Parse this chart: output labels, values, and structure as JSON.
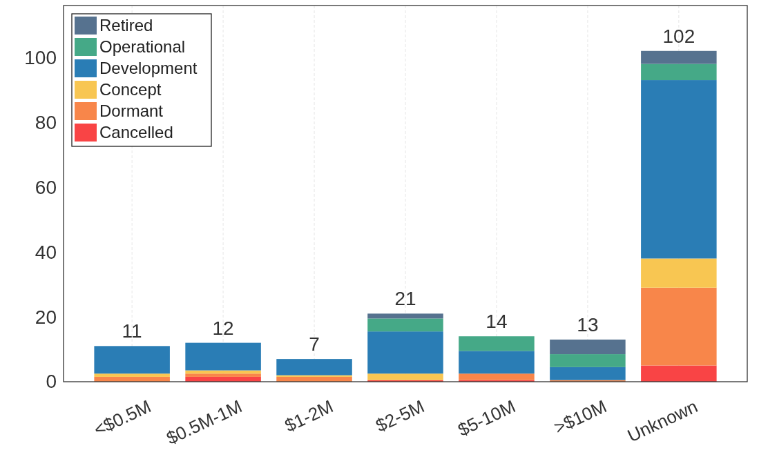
{
  "chart_data": {
    "type": "bar",
    "stacked": true,
    "categories": [
      "<$0.5M",
      "$0.5M-1M",
      "$1-2M",
      "$2-5M",
      "$5-10M",
      ">$10M",
      "Unknown"
    ],
    "series": [
      {
        "name": "Cancelled",
        "color": "#f94445",
        "values": [
          0,
          1.5,
          0,
          0.5,
          0.5,
          0,
          5
        ]
      },
      {
        "name": "Dormant",
        "color": "#f8864a",
        "values": [
          1.5,
          1,
          1.5,
          0,
          2,
          0.5,
          24
        ]
      },
      {
        "name": "Concept",
        "color": "#f8c652",
        "values": [
          1,
          1,
          0.5,
          2,
          0,
          0,
          9
        ]
      },
      {
        "name": "Development",
        "color": "#2a7db5",
        "values": [
          8.5,
          8.5,
          5,
          13,
          7,
          4,
          55
        ]
      },
      {
        "name": "Operational",
        "color": "#45a987",
        "values": [
          0,
          0,
          0,
          4,
          4.5,
          4,
          5
        ]
      },
      {
        "name": "Retired",
        "color": "#56728f",
        "values": [
          0,
          0,
          0,
          1.5,
          0,
          4.5,
          4
        ]
      }
    ],
    "totals": [
      "11",
      "12",
      "7",
      "21",
      "14",
      "13",
      "102"
    ],
    "ylim": [
      0,
      116
    ],
    "yticks": [
      0,
      20,
      40,
      60,
      80,
      100
    ],
    "grid": "x",
    "legend": "top left"
  }
}
